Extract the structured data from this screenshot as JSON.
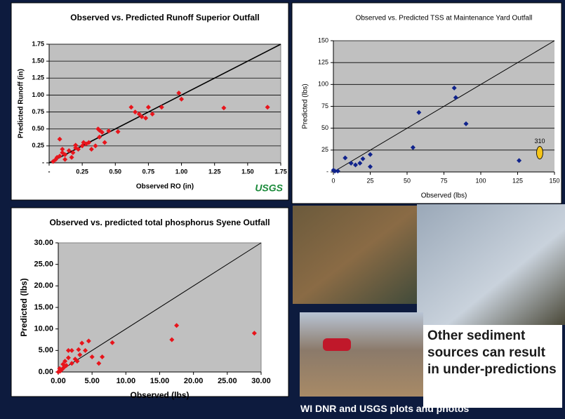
{
  "chart_data": [
    {
      "type": "scatter",
      "title": "Observed vs. Predicted Runoff Superior Outfall",
      "x_label": "Observed RO (in)",
      "y_label": "Predicted Runoff (in)",
      "x": [
        1.65,
        1.32,
        0.98,
        1.0,
        0.85,
        0.75,
        0.7,
        0.68,
        0.73,
        0.78,
        0.62,
        0.65,
        0.52,
        0.45,
        0.38,
        0.37,
        0.4,
        0.42,
        0.38,
        0.35,
        0.3,
        0.28,
        0.25,
        0.22,
        0.2,
        0.18,
        0.15,
        0.12,
        0.1,
        0.08,
        0.05,
        0.03,
        0.08,
        0.12,
        0.06,
        0.17,
        0.2,
        0.26,
        0.32,
        0.1
      ],
      "values": [
        0.82,
        0.81,
        1.03,
        0.94,
        0.82,
        0.82,
        0.68,
        0.72,
        0.66,
        0.72,
        0.82,
        0.75,
        0.46,
        0.47,
        0.48,
        0.5,
        0.45,
        0.3,
        0.38,
        0.25,
        0.3,
        0.28,
        0.25,
        0.2,
        0.22,
        0.15,
        0.18,
        0.12,
        0.15,
        0.1,
        0.05,
        0.02,
        0.35,
        0.05,
        0.08,
        0.08,
        0.26,
        0.3,
        0.2,
        0.2
      ],
      "color": "#e8141b",
      "xlim": [
        0,
        1.75
      ],
      "ylim": [
        0,
        1.75
      ],
      "xticks": [
        {
          "value": 0,
          "label": "-"
        },
        0.25,
        {
          "value": 0.5,
          "label": "0.50"
        },
        0.75,
        {
          "value": 1,
          "label": "1.00"
        },
        1.25,
        {
          "value": 1.5,
          "label": "1.50"
        },
        1.75
      ],
      "yticks": [
        {
          "value": 0,
          "label": "-"
        },
        0.25,
        {
          "value": 0.5,
          "label": "0.50"
        },
        0.75,
        {
          "value": 1,
          "label": "1.00"
        },
        1.25,
        {
          "value": 1.5,
          "label": "1.50"
        },
        1.75
      ],
      "grid": "y",
      "identity_line": true,
      "logo": "USGS"
    },
    {
      "type": "scatter",
      "title": "Observed vs. Predicted TSS at Maintenance Yard Outfall",
      "x_label": "Observed (lbs)",
      "y_label": "Predicted (lbs)",
      "x": [
        0,
        1,
        3,
        8,
        12,
        15,
        18,
        20,
        25,
        25,
        54,
        58,
        82,
        83,
        90,
        126
      ],
      "values": [
        2,
        1,
        1,
        16,
        10,
        8,
        10,
        15,
        20,
        6,
        28,
        68,
        96,
        85,
        55,
        13
      ],
      "color": "#10238c",
      "xlim": [
        0,
        150
      ],
      "ylim": [
        0,
        150
      ],
      "xticks": [
        0,
        25,
        50,
        75,
        100,
        125,
        150
      ],
      "yticks": [
        {
          "value": 0,
          "label": "-"
        },
        25,
        50,
        75,
        100,
        125,
        150
      ],
      "grid": "y",
      "identity_line": true,
      "annotations": [
        {
          "text": "310",
          "x": 140,
          "y": 22,
          "color": "#f5c518"
        }
      ]
    },
    {
      "type": "scatter",
      "title": "Observed vs. predicted total phosphorus Syene Outfall",
      "x_label": "Observed (lbs)",
      "y_label": "Predicted (lbs)",
      "x": [
        29,
        17.5,
        16.8,
        8,
        6.5,
        6,
        5,
        4.5,
        4,
        3.5,
        3,
        2.5,
        2,
        2,
        1.5,
        1.2,
        1,
        0.8,
        0.5,
        0.3,
        0.2,
        1.5,
        2.8,
        3.2,
        0.7,
        0
      ],
      "values": [
        9,
        10.8,
        7.5,
        6.8,
        3.5,
        2,
        3.5,
        7.2,
        5,
        6.7,
        5.2,
        3,
        5,
        2,
        3.3,
        1.5,
        2.5,
        1,
        0.5,
        0.2,
        0.8,
        5,
        2.5,
        4,
        1.8,
        0
      ],
      "color": "#e8141b",
      "xlim": [
        0,
        30
      ],
      "ylim": [
        0,
        30
      ],
      "xticks": [
        {
          "value": 0,
          "label": "0.00"
        },
        {
          "value": 5,
          "label": "5.00"
        },
        {
          "value": 10,
          "label": "10.00"
        },
        {
          "value": 15,
          "label": "15.00"
        },
        {
          "value": 20,
          "label": "20.00"
        },
        {
          "value": 25,
          "label": "25.00"
        },
        {
          "value": 30,
          "label": "30.00"
        }
      ],
      "yticks": [
        {
          "value": 0,
          "label": "0.00"
        },
        {
          "value": 5,
          "label": "5.00"
        },
        {
          "value": 10,
          "label": "10.00"
        },
        {
          "value": 15,
          "label": "15.00"
        },
        {
          "value": 20,
          "label": "20.00"
        },
        {
          "value": 25,
          "label": "25.00"
        },
        {
          "value": 30,
          "label": "30.00"
        }
      ],
      "grid": "none",
      "identity_line": true
    }
  ],
  "caption": "Other sediment sources can result in under-predictions",
  "credit": "WI DNR and USGS plots and photos"
}
